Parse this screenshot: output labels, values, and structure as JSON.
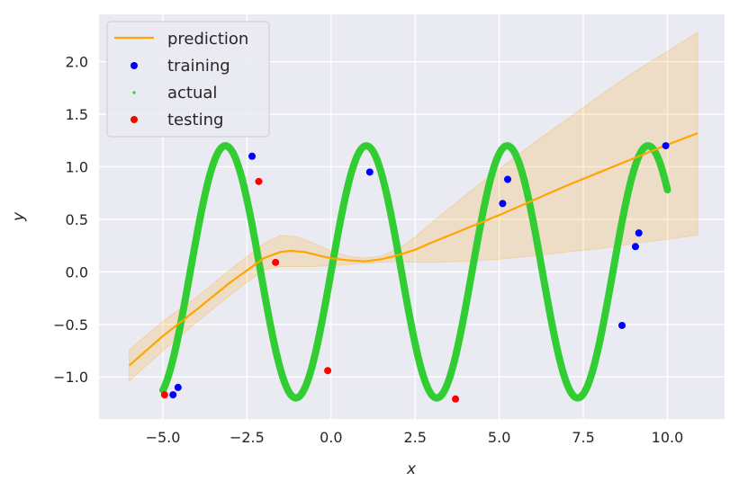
{
  "chart_data": {
    "type": "line",
    "xlabel": "x",
    "ylabel": "y",
    "xlim": [
      -6.9,
      11.7
    ],
    "ylim": [
      -1.4,
      2.45
    ],
    "xticks": [
      -5.0,
      -2.5,
      0.0,
      2.5,
      5.0,
      7.5,
      10.0
    ],
    "xtick_labels": [
      "−5.0",
      "−2.5",
      "0.0",
      "2.5",
      "5.0",
      "7.5",
      "10.0"
    ],
    "yticks": [
      -1.0,
      -0.5,
      0.0,
      0.5,
      1.0,
      1.5,
      2.0
    ],
    "ytick_labels": [
      "−1.0",
      "−0.5",
      "0.0",
      "0.5",
      "1.0",
      "1.5",
      "2.0"
    ],
    "grid": true,
    "legend_position": "top-left",
    "series": [
      {
        "name": "prediction",
        "kind": "line",
        "color": "#ffa500",
        "x": [
          -6.0,
          -5.0,
          -4.0,
          -3.0,
          -2.0,
          -1.5,
          -1.2,
          -0.8,
          -0.3,
          0.0,
          0.5,
          1.0,
          1.5,
          2.0,
          2.5,
          3.0,
          4.0,
          5.0,
          6.0,
          7.0,
          8.0,
          9.0,
          10.0,
          10.9
        ],
        "y": [
          -0.89,
          -0.61,
          -0.36,
          -0.1,
          0.13,
          0.19,
          0.2,
          0.19,
          0.15,
          0.13,
          0.11,
          0.1,
          0.12,
          0.16,
          0.21,
          0.28,
          0.41,
          0.54,
          0.68,
          0.82,
          0.95,
          1.08,
          1.21,
          1.32
        ]
      },
      {
        "name": "",
        "kind": "band",
        "color": "#ffa500",
        "x": [
          -6.0,
          -5.0,
          -4.0,
          -3.0,
          -2.0,
          -1.5,
          -1.0,
          -0.5,
          0.0,
          0.5,
          1.0,
          1.5,
          2.0,
          2.5,
          3.0,
          4.0,
          5.0,
          6.0,
          7.0,
          8.0,
          9.0,
          10.0,
          10.9
        ],
        "lower": [
          -1.04,
          -0.75,
          -0.48,
          -0.22,
          0.02,
          0.05,
          0.05,
          0.05,
          0.06,
          0.07,
          0.08,
          0.09,
          0.1,
          0.09,
          0.09,
          0.1,
          0.12,
          0.15,
          0.19,
          0.22,
          0.27,
          0.31,
          0.35
        ],
        "upper": [
          -0.74,
          -0.47,
          -0.24,
          0.02,
          0.27,
          0.35,
          0.33,
          0.27,
          0.2,
          0.15,
          0.13,
          0.15,
          0.22,
          0.33,
          0.47,
          0.73,
          0.98,
          1.22,
          1.45,
          1.68,
          1.9,
          2.1,
          2.28
        ]
      },
      {
        "name": "training",
        "kind": "scatter",
        "color": "#0000ff",
        "points": [
          [
            -4.7,
            -1.17
          ],
          [
            -4.55,
            -1.1
          ],
          [
            -2.35,
            1.1
          ],
          [
            1.15,
            0.95
          ],
          [
            5.1,
            0.65
          ],
          [
            5.25,
            0.88
          ],
          [
            8.65,
            -0.51
          ],
          [
            9.05,
            0.24
          ],
          [
            9.15,
            0.37
          ],
          [
            9.95,
            1.2
          ]
        ]
      },
      {
        "name": "actual",
        "kind": "curve",
        "color": "#32cd32",
        "x_range": [
          -5.0,
          10.0
        ],
        "function": "1.2*sin(1.5*x)"
      },
      {
        "name": "testing",
        "kind": "scatter",
        "color": "#ff0000",
        "points": [
          [
            -4.95,
            -1.17
          ],
          [
            -2.15,
            0.86
          ],
          [
            -1.65,
            0.09
          ],
          [
            -0.1,
            -0.94
          ],
          [
            3.7,
            -1.21
          ]
        ]
      }
    ]
  }
}
